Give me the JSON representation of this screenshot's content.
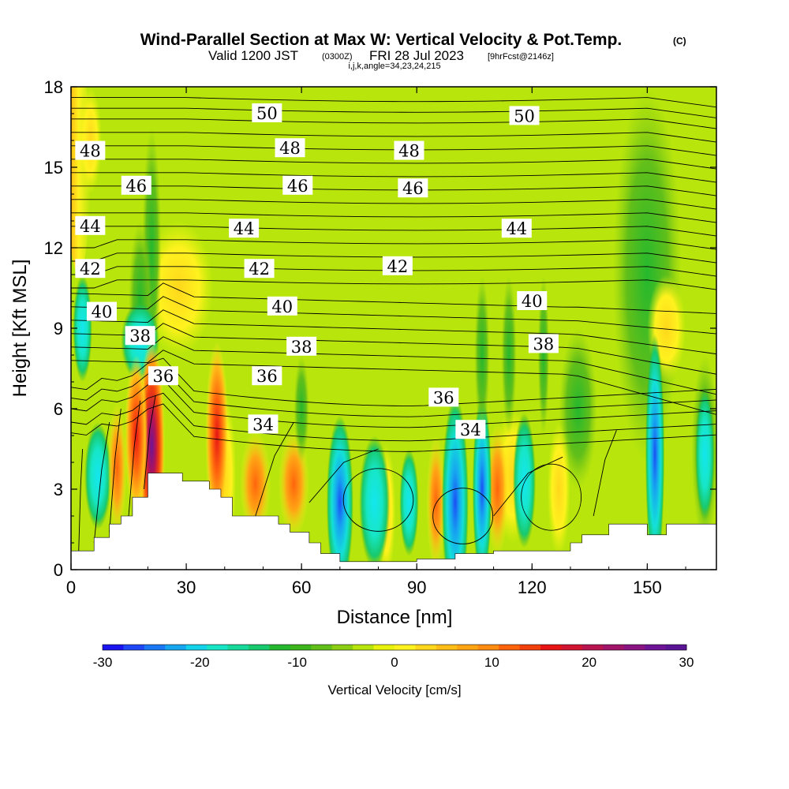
{
  "chart_data": {
    "type": "heatmap",
    "title": "Wind-Parallel Section at Max W: Vertical Velocity & Pot.Temp.",
    "title_mark": "(C)",
    "subtitle_a": "Valid 1200 JST",
    "subtitle_utc": "(0300Z)",
    "subtitle_b": "FRI 28 Jul 2023",
    "subtitle_fcst": "[9hrFcst@2146z]",
    "subtitle2": "i,j,k,angle=34,23,24,215",
    "xlabel": "Distance [nm]",
    "ylabel": "Height [Kft MSL]",
    "xlim": [
      0,
      168
    ],
    "ylim": [
      0,
      18
    ],
    "xticks": [
      0,
      30,
      60,
      90,
      120,
      150
    ],
    "yticks": [
      0,
      3,
      6,
      9,
      12,
      15,
      18
    ],
    "colorbar_label": "Vertical Velocity [cm/s]",
    "colorbar_ticks": [
      -30,
      -20,
      -10,
      0,
      10,
      20,
      30
    ],
    "colorbar_colors": [
      "#1a14f0",
      "#1f47f5",
      "#1b78f5",
      "#16a6f0",
      "#14d2ea",
      "#16e6c6",
      "#16d99a",
      "#18c96e",
      "#25b82e",
      "#3db51c",
      "#62bf19",
      "#8cce14",
      "#b8e60c",
      "#e8f20c",
      "#fff21e",
      "#ffd71c",
      "#ffbd17",
      "#ffa514",
      "#ff8c11",
      "#ff640d",
      "#f2400d",
      "#e61414",
      "#d11432",
      "#b81450",
      "#a0146a",
      "#8a1482",
      "#6e1496",
      "#5a1496"
    ],
    "isentropes_K_labels": [
      {
        "v": "50",
        "x": 51,
        "y": 17.0
      },
      {
        "v": "50",
        "x": 118,
        "y": 16.9
      },
      {
        "v": "48",
        "x": 5,
        "y": 15.6
      },
      {
        "v": "48",
        "x": 57,
        "y": 15.7
      },
      {
        "v": "48",
        "x": 88,
        "y": 15.6
      },
      {
        "v": "46",
        "x": 17,
        "y": 14.3
      },
      {
        "v": "46",
        "x": 59,
        "y": 14.3
      },
      {
        "v": "46",
        "x": 89,
        "y": 14.2
      },
      {
        "v": "44",
        "x": 5,
        "y": 12.8
      },
      {
        "v": "44",
        "x": 45,
        "y": 12.7
      },
      {
        "v": "44",
        "x": 116,
        "y": 12.7
      },
      {
        "v": "42",
        "x": 5,
        "y": 11.2
      },
      {
        "v": "42",
        "x": 49,
        "y": 11.2
      },
      {
        "v": "42",
        "x": 85,
        "y": 11.3
      },
      {
        "v": "40",
        "x": 8,
        "y": 9.6
      },
      {
        "v": "40",
        "x": 55,
        "y": 9.8
      },
      {
        "v": "40",
        "x": 120,
        "y": 10.0
      },
      {
        "v": "38",
        "x": 18,
        "y": 8.7
      },
      {
        "v": "38",
        "x": 60,
        "y": 8.3
      },
      {
        "v": "38",
        "x": 123,
        "y": 8.4
      },
      {
        "v": "36",
        "x": 24,
        "y": 7.2
      },
      {
        "v": "36",
        "x": 51,
        "y": 7.2
      },
      {
        "v": "36",
        "x": 97,
        "y": 6.4
      },
      {
        "v": "34",
        "x": 50,
        "y": 5.4
      },
      {
        "v": "34",
        "x": 104,
        "y": 5.2
      }
    ]
  }
}
